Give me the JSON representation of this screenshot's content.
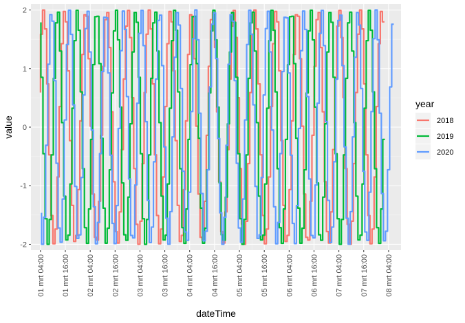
{
  "chart_data": {
    "type": "line",
    "title": "",
    "xlabel": "dateTime",
    "ylabel": "value",
    "ylim": [
      -2.1,
      2.1
    ],
    "y_ticks": [
      -2,
      -1,
      0,
      1,
      2
    ],
    "x_ticks": [
      "01 mrt 04:00",
      "01 mrt 16:00",
      "02 mrt 04:00",
      "02 mrt 16:00",
      "03 mrt 04:00",
      "03 mrt 16:00",
      "04 mrt 04:00",
      "04 mrt 16:00",
      "05 mrt 04:00",
      "05 mrt 16:00",
      "06 mrt 04:00",
      "06 mrt 16:00",
      "07 mrt 04:00",
      "07 mrt 16:00",
      "08 mrt 04:00"
    ],
    "x_range_hours": [
      -4.6,
      174.0
    ],
    "grid": true,
    "legend": {
      "title": "year",
      "position": "right"
    },
    "series": [
      {
        "name": "2018",
        "color": "#F8766D",
        "start_hour": 0,
        "end_hour": 166,
        "step_hours": 1,
        "amplitude": 2.0,
        "period_hours": 10.2,
        "phase": 0.3
      },
      {
        "name": "2019",
        "color": "#00BA38",
        "start_hour": 0.2,
        "end_hour": 167,
        "step_hours": 1,
        "amplitude": 2.0,
        "period_hours": 9.4,
        "phase": 1.9
      },
      {
        "name": "2020",
        "color": "#619CFF",
        "start_hour": 0.5,
        "end_hour": 170.5,
        "step_hours": 1,
        "amplitude": 2.0,
        "period_hours": 8.7,
        "phase": 3.6
      }
    ]
  }
}
